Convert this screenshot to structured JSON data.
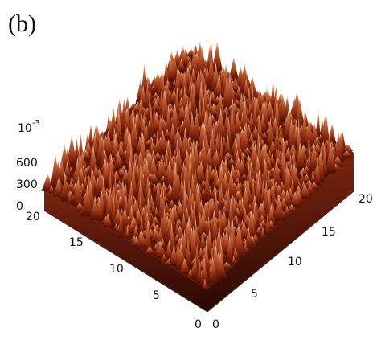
{
  "panel_label": "(b)",
  "z_axis": {
    "unit_base": "10",
    "unit_exponent": "-3",
    "ticks": [
      "600",
      "300",
      "0"
    ]
  },
  "y_axis": {
    "ticks": [
      "20",
      "15",
      "10",
      "5",
      "0"
    ]
  },
  "x_axis": {
    "ticks": [
      "0",
      "5",
      "10",
      "15",
      "20"
    ]
  }
}
